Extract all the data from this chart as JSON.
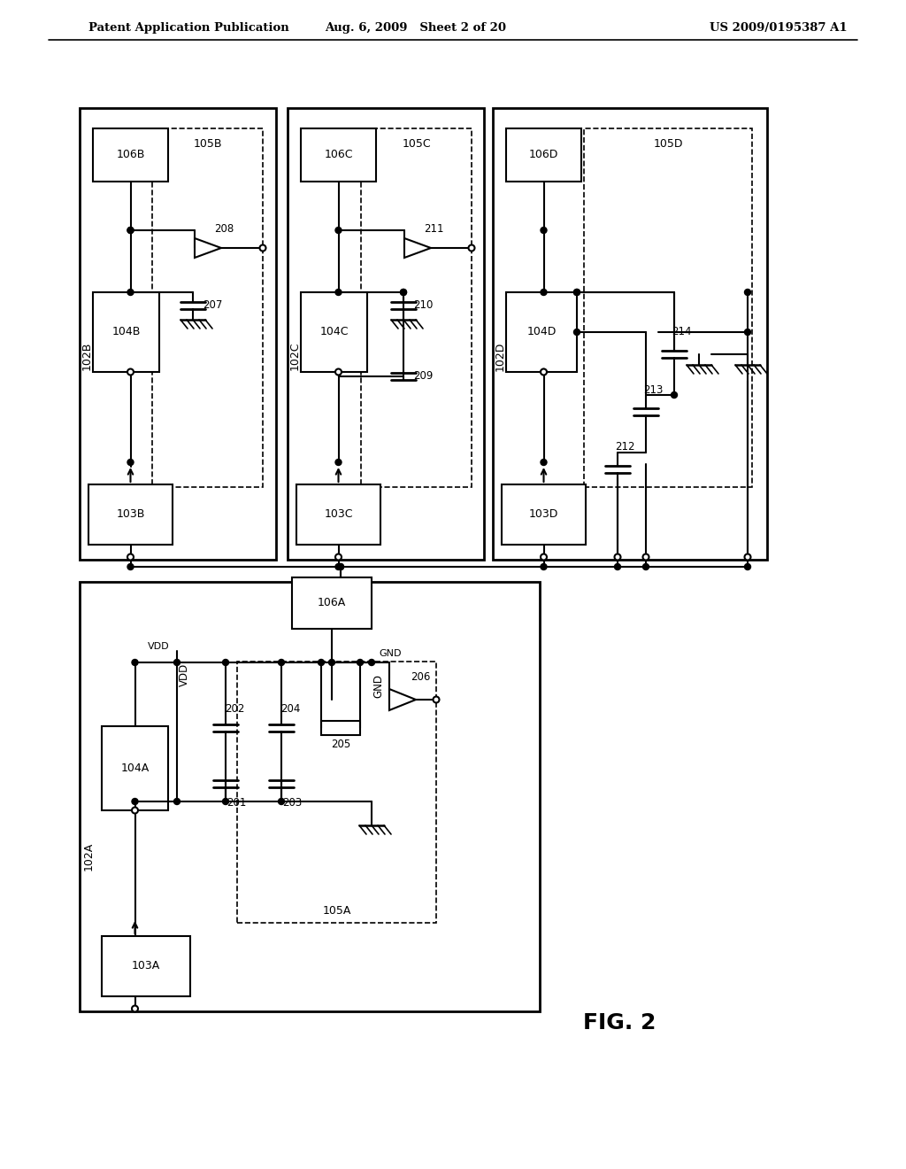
{
  "bg_color": "#ffffff",
  "line_color": "#000000",
  "header_left": "Patent Application Publication",
  "header_mid": "Aug. 6, 2009   Sheet 2 of 20",
  "header_right": "US 2009/0195387 A1",
  "fig_label": "FIG. 2"
}
